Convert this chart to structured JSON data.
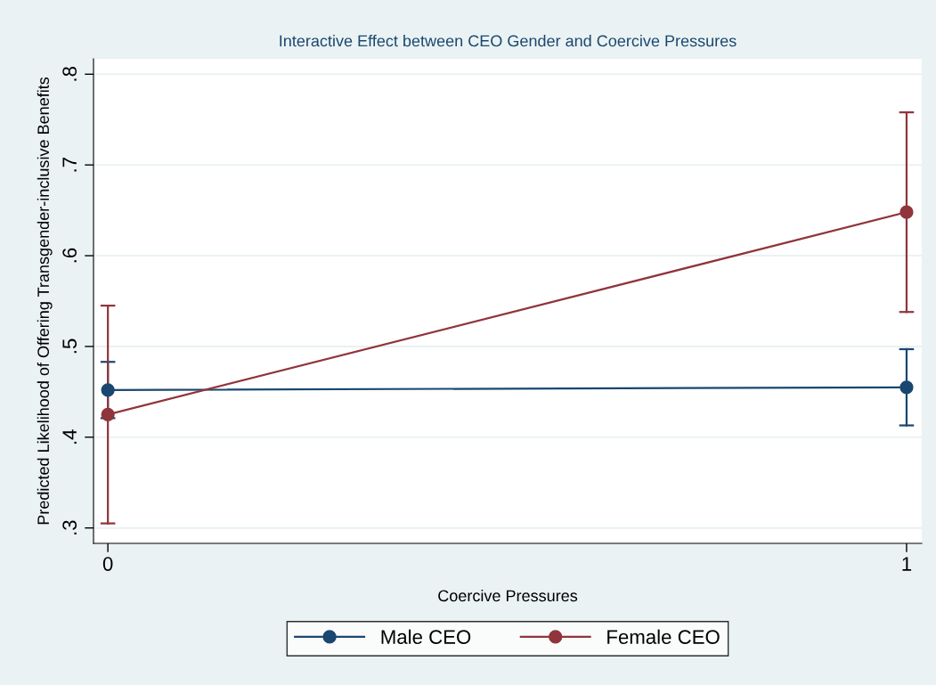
{
  "chart_data": {
    "type": "line",
    "title": "Interactive Effect between CEO Gender and Coercive Pressures",
    "xlabel": "Coercive Pressures",
    "ylabel": "Predicted Likelihood of Offering Transgender-inclusive Benefits",
    "x": [
      0,
      1
    ],
    "series": [
      {
        "name": "Male CEO",
        "color": "#1a476f",
        "values": [
          0.452,
          0.455
        ],
        "errors": [
          [
            0.421,
            0.483
          ],
          [
            0.413,
            0.497
          ]
        ]
      },
      {
        "name": "Female CEO",
        "color": "#90353b",
        "values": [
          0.425,
          0.648
        ],
        "errors": [
          [
            0.305,
            0.545
          ],
          [
            0.538,
            0.758
          ]
        ]
      }
    ],
    "xlim": [
      -0.018,
      1.019
    ],
    "xticks": [
      0,
      1
    ],
    "ylim": [
      0.283,
      0.817
    ],
    "yticks": [
      {
        "value": 0.3,
        "label": ".3"
      },
      {
        "value": 0.4,
        "label": ".4"
      },
      {
        "value": 0.5,
        "label": ".5"
      },
      {
        "value": 0.6,
        "label": ".6"
      },
      {
        "value": 0.7,
        "label": ".7"
      },
      {
        "value": 0.8,
        "label": ".8"
      }
    ],
    "grid": "y",
    "legend": "bottom",
    "marker": "circle",
    "line_style": "solid"
  }
}
